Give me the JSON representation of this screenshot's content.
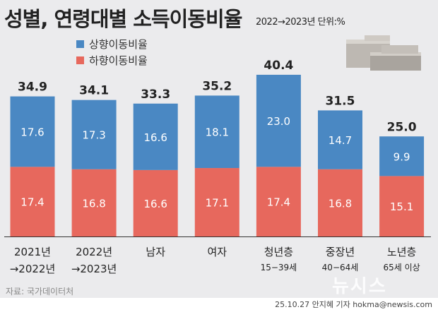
{
  "title": "성별, 연령대별 소득이동비율",
  "unit_note": "2022→2023년 단위:%",
  "source": "자료: 국가데이터처",
  "credit": "25.10.27 안지혜 기자 hokma@newsis.com",
  "watermark": "뉴시스",
  "colors": {
    "up": "#4a88c3",
    "down": "#e7685d",
    "background": "#ebebed"
  },
  "chart_data": {
    "type": "bar",
    "stacked": true,
    "title": "성별, 연령대별 소득이동비율",
    "categories": [
      {
        "line1": "2021년",
        "line2": "→2022년"
      },
      {
        "line1": "2022년",
        "line2": "→2023년"
      },
      {
        "line1": "남자",
        "line2": ""
      },
      {
        "line1": "여자",
        "line2": ""
      },
      {
        "line1": "청년층",
        "line2": "15−39세"
      },
      {
        "line1": "중장년",
        "line2": "40−64세"
      },
      {
        "line1": "노년층",
        "line2": "65세 이상"
      }
    ],
    "series": [
      {
        "name": "하향이동비율",
        "values": [
          17.4,
          16.8,
          16.6,
          17.1,
          17.4,
          16.8,
          15.1
        ]
      },
      {
        "name": "상향이동비율",
        "values": [
          17.6,
          17.3,
          16.6,
          18.1,
          23.0,
          14.7,
          9.9
        ]
      }
    ],
    "totals": [
      34.9,
      34.1,
      33.3,
      35.2,
      40.4,
      31.5,
      25.0
    ],
    "ylim": [
      0,
      42
    ],
    "legend": [
      "상향이동비율",
      "하향이동비율"
    ],
    "legend_position": "top-left"
  }
}
